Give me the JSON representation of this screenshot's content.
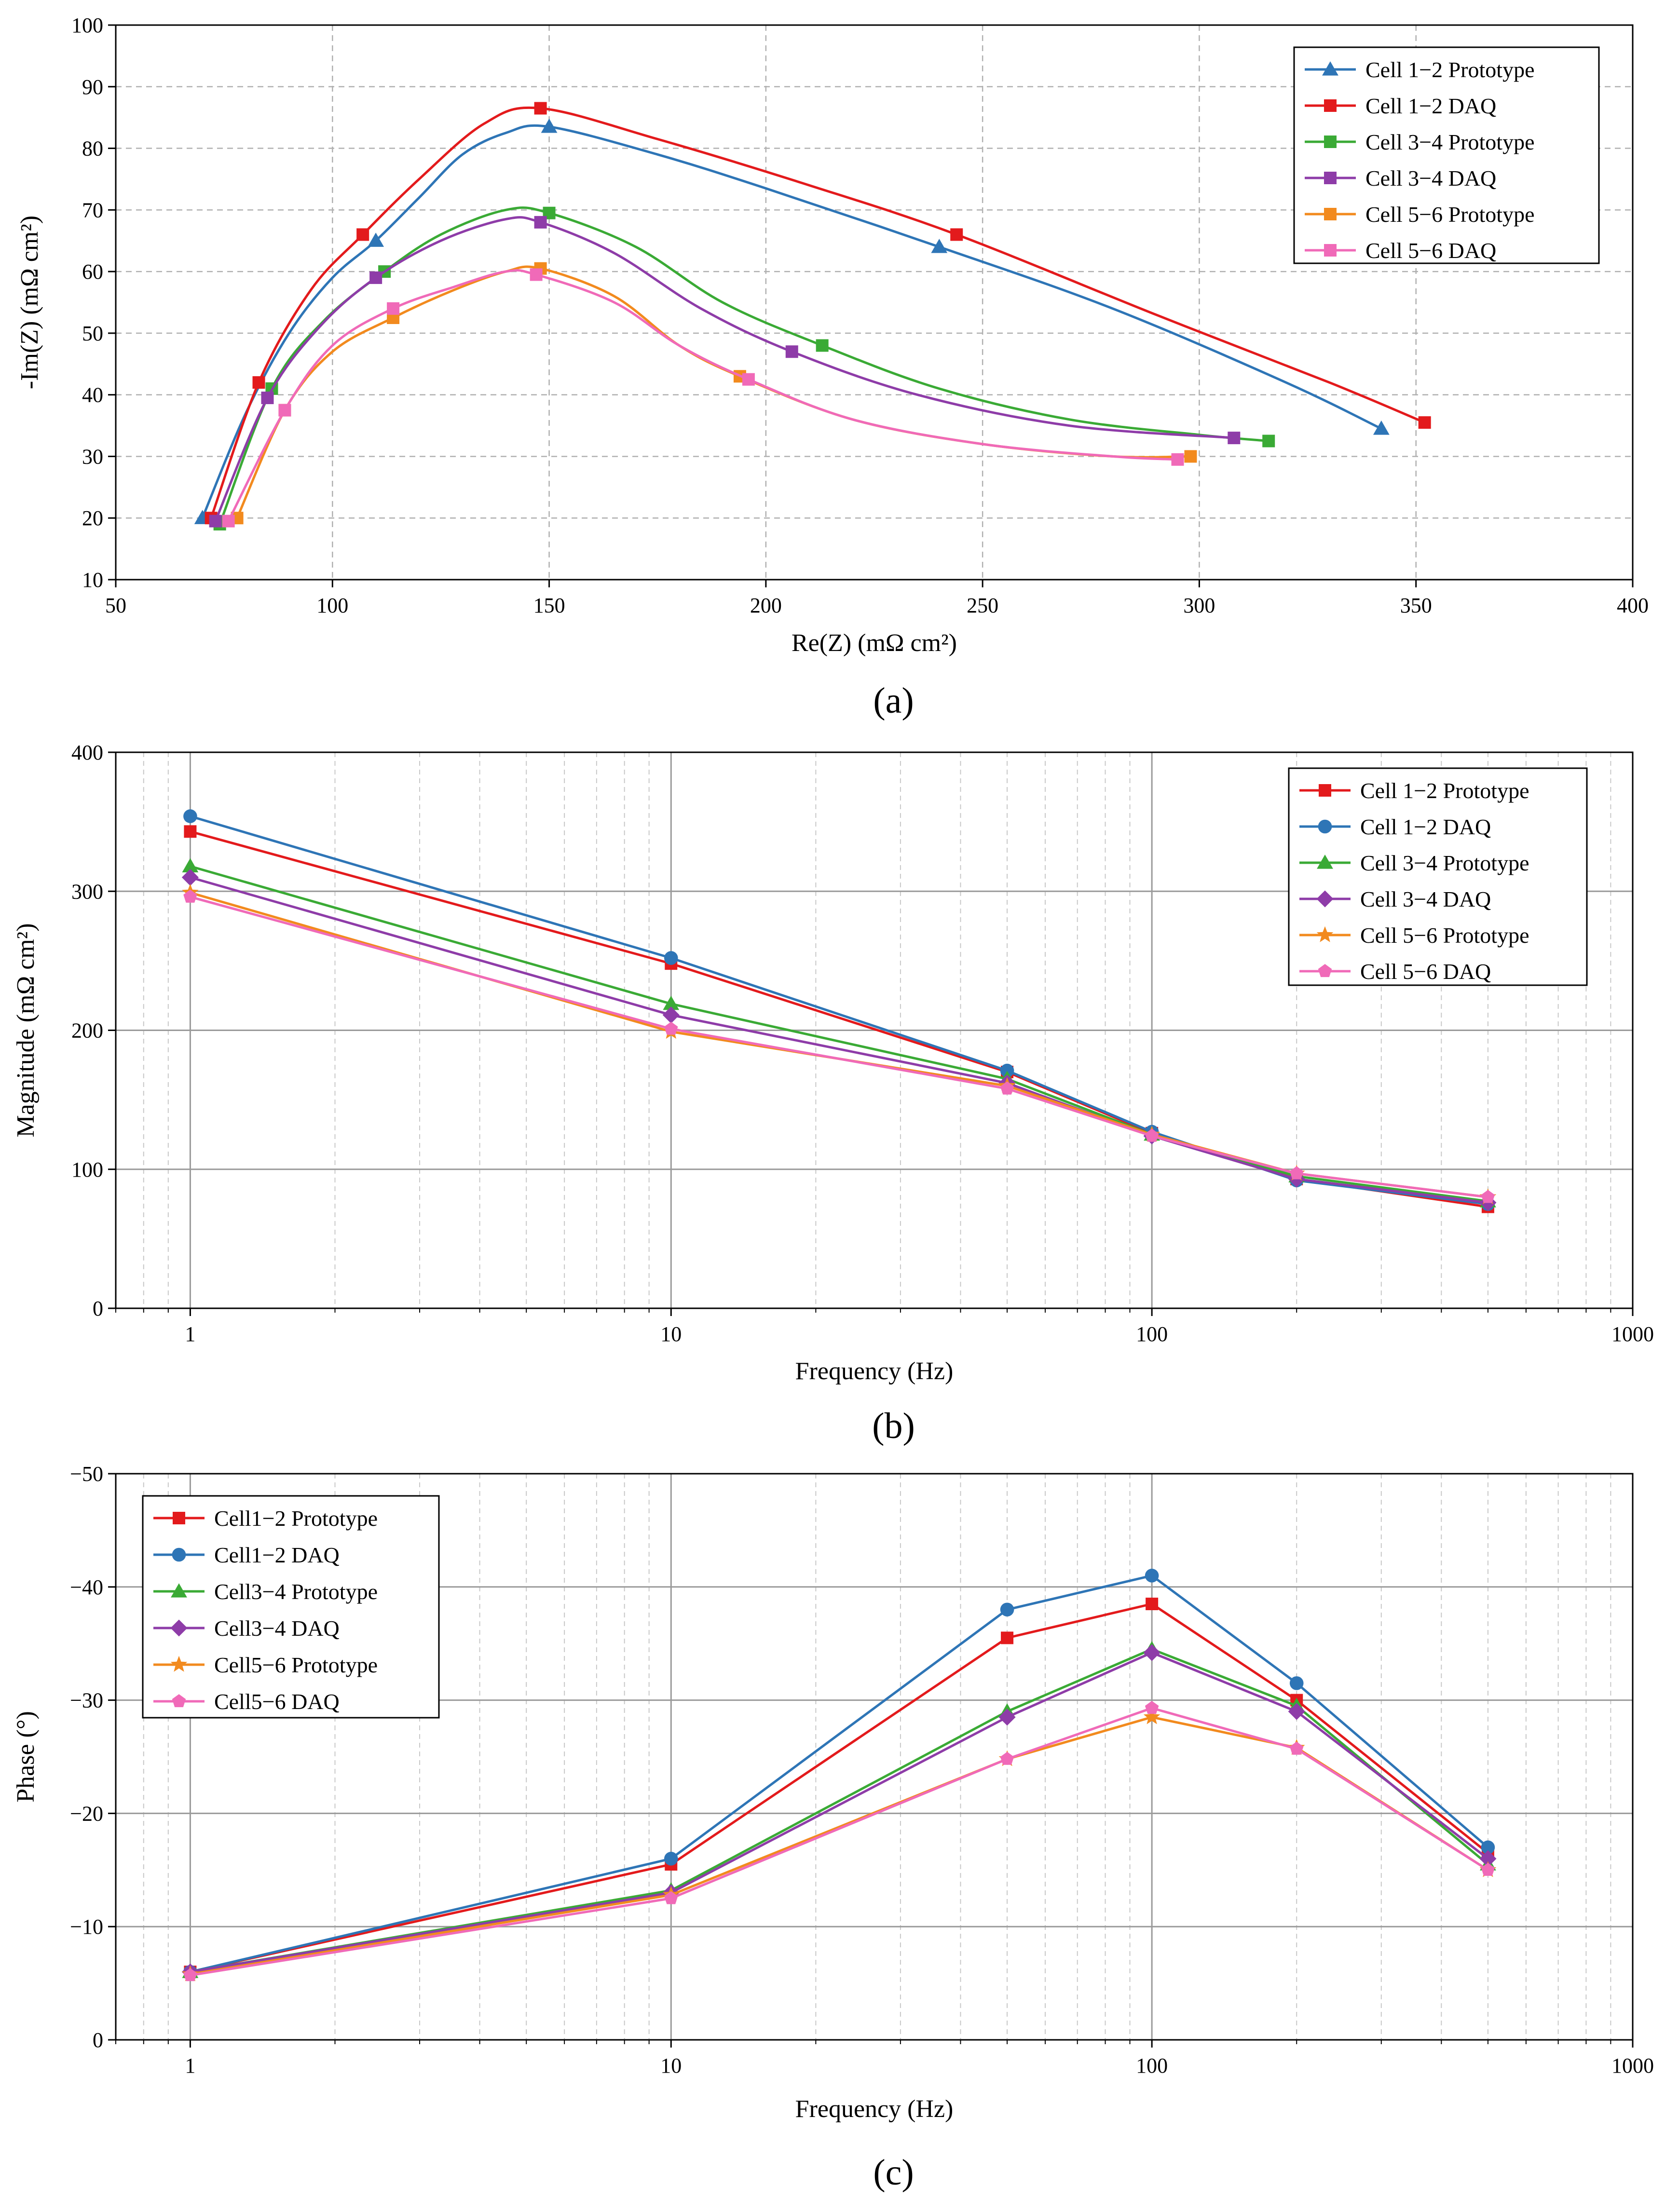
{
  "chart_data": [
    {
      "id": "a",
      "type": "line",
      "panel_label": "(a)",
      "title": "",
      "xlabel": "Re(Z) (mΩ cm²)",
      "ylabel": "-Im(Z) (mΩ cm²)",
      "xscale": "linear",
      "xlim": [
        50,
        400
      ],
      "ylim": [
        10,
        100
      ],
      "xticks": [
        50,
        100,
        150,
        200,
        250,
        300,
        350,
        400
      ],
      "yticks": [
        10,
        20,
        30,
        40,
        50,
        60,
        70,
        80,
        90,
        100
      ],
      "grid": true,
      "legend_position": "top-right",
      "series": [
        {
          "name": "Cell 1−2 Prototype",
          "color": "#2e75b6",
          "marker": "triangle",
          "x": [
            70,
            110,
            150,
            240,
            342
          ],
          "y": [
            20,
            65,
            83.5,
            64,
            34.5
          ],
          "curve_x": [
            70,
            80,
            90,
            100,
            110,
            120,
            130,
            140,
            150,
            175,
            200,
            240,
            280,
            320,
            342
          ],
          "curve_y": [
            20,
            37,
            50,
            59,
            65,
            72,
            79,
            82.5,
            83.5,
            79,
            73.5,
            64,
            54,
            42,
            34.5
          ]
        },
        {
          "name": "Cell 1−2 DAQ",
          "color": "#e31a1c",
          "marker": "square",
          "x": [
            72,
            83,
            107,
            148,
            244,
            352
          ],
          "y": [
            20,
            42,
            66,
            86.5,
            66,
            35.5
          ],
          "curve_x": [
            72,
            83,
            95,
            107,
            120,
            135,
            148,
            175,
            210,
            244,
            290,
            330,
            352
          ],
          "curve_y": [
            20,
            42,
            57,
            66,
            75,
            84,
            86.5,
            81.5,
            74,
            66,
            53,
            42,
            35.5
          ]
        },
        {
          "name": "Cell 3−4 Prototype",
          "color": "#3aaa35",
          "marker": "square",
          "x": [
            74,
            86,
            112,
            150,
            213,
            316
          ],
          "y": [
            19,
            41,
            60,
            69.5,
            48,
            32.5
          ],
          "curve_x": [
            74,
            86,
            98,
            112,
            125,
            140,
            150,
            170,
            190,
            213,
            240,
            270,
            300,
            316
          ],
          "curve_y": [
            19,
            41,
            52,
            60,
            66,
            70,
            69.5,
            64,
            55,
            48,
            41,
            36,
            33.5,
            32.5
          ]
        },
        {
          "name": "Cell 3−4 DAQ",
          "color": "#8e3ca8",
          "marker": "square",
          "x": [
            73,
            85,
            110,
            148,
            206,
            308
          ],
          "y": [
            19.5,
            39.5,
            59,
            68,
            47,
            33
          ],
          "curve_x": [
            73,
            85,
            97,
            110,
            125,
            140,
            148,
            165,
            185,
            206,
            235,
            270,
            308
          ],
          "curve_y": [
            19.5,
            39.5,
            51,
            59,
            65,
            68.5,
            68,
            63,
            54,
            47,
            40,
            35,
            33
          ]
        },
        {
          "name": "Cell 5−6 Prototype",
          "color": "#f28a1e",
          "marker": "square",
          "x": [
            78,
            89,
            114,
            148,
            194,
            298
          ],
          "y": [
            20,
            37.5,
            52.5,
            60.5,
            43,
            30
          ],
          "curve_x": [
            78,
            89,
            100,
            114,
            128,
            140,
            148,
            165,
            180,
            194,
            220,
            250,
            280,
            298
          ],
          "curve_y": [
            20,
            37.5,
            47,
            52.5,
            57,
            60,
            60.5,
            56,
            48,
            43,
            36,
            32,
            30,
            30
          ]
        },
        {
          "name": "Cell 5−6 DAQ",
          "color": "#f06ab8",
          "marker": "square",
          "x": [
            76,
            89,
            114,
            147,
            196,
            295
          ],
          "y": [
            19.5,
            37.5,
            54,
            59.5,
            42.5,
            29.5
          ],
          "curve_x": [
            76,
            89,
            100,
            114,
            128,
            140,
            147,
            165,
            180,
            196,
            220,
            250,
            280,
            295
          ],
          "curve_y": [
            19.5,
            37.5,
            48,
            54,
            57.5,
            60,
            59.5,
            55,
            48,
            42.5,
            36,
            32,
            30,
            29.5
          ]
        }
      ]
    },
    {
      "id": "b",
      "type": "line",
      "panel_label": "(b)",
      "title": "",
      "xlabel": "Frequency (Hz)",
      "ylabel": "Magnitude (mΩ cm²)",
      "xscale": "log",
      "xlim": [
        0.7,
        1000
      ],
      "ylim": [
        0,
        400
      ],
      "xticks": [
        1,
        10,
        100,
        1000
      ],
      "yticks": [
        0,
        100,
        200,
        300,
        400
      ],
      "grid": true,
      "legend_position": "top-right",
      "series": [
        {
          "name": "Cell 1−2 Prototype",
          "color": "#e31a1c",
          "marker": "square",
          "x": [
            1,
            10,
            50,
            100,
            200,
            500
          ],
          "y": [
            343,
            248,
            170,
            126,
            93,
            73
          ]
        },
        {
          "name": "Cell 1−2 DAQ",
          "color": "#2e75b6",
          "marker": "circle",
          "x": [
            1,
            10,
            50,
            100,
            200,
            500
          ],
          "y": [
            354,
            252,
            171,
            127,
            92,
            75
          ]
        },
        {
          "name": "Cell 3−4 Prototype",
          "color": "#3aaa35",
          "marker": "triangle",
          "x": [
            1,
            10,
            50,
            100,
            200,
            500
          ],
          "y": [
            318,
            219,
            165,
            125,
            95,
            77
          ]
        },
        {
          "name": "Cell 3−4 DAQ",
          "color": "#8e3ca8",
          "marker": "diamond",
          "x": [
            1,
            10,
            50,
            100,
            200,
            500
          ],
          "y": [
            310,
            211,
            162,
            124,
            93,
            76
          ]
        },
        {
          "name": "Cell 5−6 Prototype",
          "color": "#f28a1e",
          "marker": "star",
          "x": [
            1,
            10,
            50,
            100,
            200,
            500
          ],
          "y": [
            299,
            199,
            160,
            125,
            97,
            80
          ]
        },
        {
          "name": "Cell 5−6 DAQ",
          "color": "#f06ab8",
          "marker": "pentagon",
          "x": [
            1,
            10,
            50,
            100,
            200,
            500
          ],
          "y": [
            296,
            201,
            158,
            124,
            97,
            80
          ]
        }
      ]
    },
    {
      "id": "c",
      "type": "line",
      "panel_label": "(c)",
      "title": "",
      "xlabel": "Frequency (Hz)",
      "ylabel": "Phase (°)",
      "xscale": "log",
      "xlim": [
        0.7,
        1000
      ],
      "ylim": [
        0,
        -50
      ],
      "xticks": [
        1,
        10,
        100,
        1000
      ],
      "yticks": [
        0,
        -10,
        -20,
        -30,
        -40,
        -50
      ],
      "grid": true,
      "legend_position": "top-left",
      "series": [
        {
          "name": "Cell1−2 Prototype",
          "color": "#e31a1c",
          "marker": "square",
          "x": [
            1,
            10,
            50,
            100,
            200,
            500
          ],
          "y": [
            -6,
            -15.5,
            -35.5,
            -38.5,
            -30,
            -16.5
          ]
        },
        {
          "name": "Cell1−2 DAQ",
          "color": "#2e75b6",
          "marker": "circle",
          "x": [
            1,
            10,
            50,
            100,
            200,
            500
          ],
          "y": [
            -6,
            -16,
            -38,
            -41,
            -31.5,
            -17
          ]
        },
        {
          "name": "Cell3−4 Prototype",
          "color": "#3aaa35",
          "marker": "triangle",
          "x": [
            1,
            10,
            50,
            100,
            200,
            500
          ],
          "y": [
            -6,
            -13.2,
            -29,
            -34.5,
            -29.5,
            -15.5
          ]
        },
        {
          "name": "Cell3−4 DAQ",
          "color": "#8e3ca8",
          "marker": "diamond",
          "x": [
            1,
            10,
            50,
            100,
            200,
            500
          ],
          "y": [
            -6,
            -13,
            -28.5,
            -34.2,
            -29,
            -16
          ]
        },
        {
          "name": "Cell5−6 Prototype",
          "color": "#f28a1e",
          "marker": "star",
          "x": [
            1,
            10,
            50,
            100,
            200,
            500
          ],
          "y": [
            -5.8,
            -12.8,
            -24.8,
            -28.5,
            -25.8,
            -15
          ]
        },
        {
          "name": "Cell5−6 DAQ",
          "color": "#f06ab8",
          "marker": "pentagon",
          "x": [
            1,
            10,
            50,
            100,
            200,
            500
          ],
          "y": [
            -5.7,
            -12.5,
            -24.8,
            -29.3,
            -25.7,
            -15
          ]
        }
      ]
    }
  ]
}
